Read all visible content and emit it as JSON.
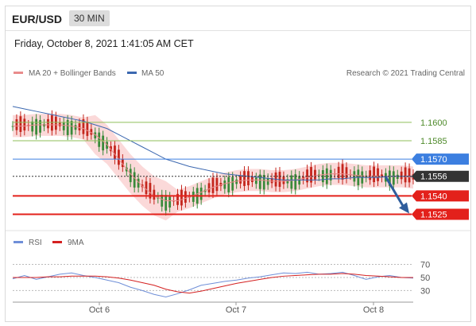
{
  "header": {
    "pair": "EUR/USD",
    "interval": "30 MIN"
  },
  "timestamp": "Friday, October 8, 2021 1:41:05 AM CET",
  "legend": {
    "ma20_label": "MA 20 + Bollinger Bands",
    "ma50_label": "MA 50",
    "credit": "Research © 2021 Trading Central"
  },
  "rsi_legend": {
    "rsi_label": "RSI",
    "ma9_label": "9MA"
  },
  "colors": {
    "bollinger": "#f9c9c9",
    "ma20": "#e98c8c",
    "ma50": "#3c68b0",
    "up": "#3a8a3a",
    "down": "#c4261d",
    "support": "#e3211b",
    "resistance": "#3c7fe0",
    "target": "#8fbf5a",
    "current": "#333333",
    "arrow": "#2f5d9c",
    "rsi": "#6f8fd8",
    "rsi_ma": "#d42020"
  },
  "chart_data": [
    {
      "type": "line",
      "title": "EUR/USD",
      "ylim": [
        1.1513,
        1.1635
      ],
      "x_ticks": [
        "Oct 6",
        "Oct 7",
        "Oct 8"
      ],
      "levels": [
        {
          "value": 1.16,
          "label": "1.1600",
          "role": "target"
        },
        {
          "value": 1.1585,
          "label": "1.1585",
          "role": "target"
        },
        {
          "value": 1.157,
          "label": "1.1570",
          "role": "resistance"
        },
        {
          "value": 1.1556,
          "label": "1.1556",
          "role": "current"
        },
        {
          "value": 1.154,
          "label": "1.1540",
          "role": "support"
        },
        {
          "value": 1.1525,
          "label": "1.1525",
          "role": "support"
        }
      ],
      "series": [
        {
          "name": "MA 20 + Bollinger Bands",
          "values": [
            1.1597,
            1.1597,
            1.1598,
            1.1598,
            1.1598,
            1.1597,
            1.1595,
            1.159,
            1.1582,
            1.157,
            1.1558,
            1.1548,
            1.154,
            1.1536,
            1.1536,
            1.1539,
            1.1543,
            1.1547,
            1.155,
            1.1552,
            1.1553,
            1.1553,
            1.1552,
            1.1552,
            1.1553,
            1.1555,
            1.1557,
            1.1558,
            1.1558,
            1.1557,
            1.1556,
            1.1556,
            1.1556,
            1.1556,
            1.1555
          ]
        },
        {
          "name": "MA 50",
          "values": [
            1.1613,
            1.1611,
            1.1609,
            1.1607,
            1.1605,
            1.1603,
            1.1601,
            1.1598,
            1.1595,
            1.159,
            1.1585,
            1.158,
            1.1575,
            1.157,
            1.1567,
            1.1564,
            1.1562,
            1.156,
            1.1558,
            1.1557,
            1.1556,
            1.1555,
            1.1554,
            1.1553,
            1.1553,
            1.1553,
            1.1553,
            1.1554,
            1.1554,
            1.1555,
            1.1555,
            1.1555,
            1.1556,
            1.1556,
            1.1556
          ]
        }
      ]
    },
    {
      "type": "line",
      "title": "RSI",
      "ylim": [
        17,
        78
      ],
      "y_ticks": [
        70,
        50,
        30
      ],
      "series": [
        {
          "name": "RSI",
          "values": [
            48,
            53,
            47,
            51,
            55,
            57,
            53,
            50,
            46,
            42,
            35,
            30,
            24,
            20,
            25,
            31,
            38,
            41,
            44,
            46,
            49,
            51,
            54,
            57,
            56,
            58,
            55,
            56,
            58,
            53,
            47,
            51,
            53,
            50,
            49
          ]
        },
        {
          "name": "9MA",
          "values": [
            50,
            50,
            50,
            51,
            51,
            52,
            52,
            52,
            51,
            49,
            46,
            42,
            38,
            32,
            28,
            26,
            29,
            33,
            37,
            41,
            44,
            47,
            50,
            52,
            53,
            54,
            55,
            55,
            56,
            55,
            53,
            52,
            51,
            50,
            50
          ]
        }
      ]
    }
  ]
}
